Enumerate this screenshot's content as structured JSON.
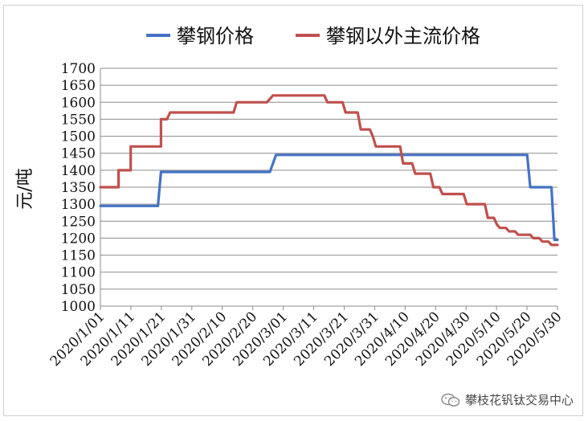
{
  "chart_data": {
    "type": "line",
    "xlabel": "",
    "ylabel": "元/吨",
    "ylim": [
      1000,
      1700
    ],
    "ytick_step": 50,
    "grid": true,
    "legend_position": "top",
    "x_ticks": [
      "2020/1/01",
      "2020/1/11",
      "2020/1/21",
      "2020/1/31",
      "2020/2/10",
      "2020/2/20",
      "2020/3/01",
      "2020/3/11",
      "2020/3/21",
      "2020/3/31",
      "2020/4/10",
      "2020/4/20",
      "2020/4/30",
      "2020/5/10",
      "2020/5/20",
      "2020/5/30"
    ],
    "x_range": [
      "2020-01-01",
      "2020-05-31"
    ],
    "series": [
      {
        "name": "攀钢价格",
        "color": "#4472c4",
        "points": [
          [
            "2020-01-01",
            1295
          ],
          [
            "2020-01-20",
            1295
          ],
          [
            "2020-01-21",
            1395
          ],
          [
            "2020-02-26",
            1395
          ],
          [
            "2020-02-28",
            1445
          ],
          [
            "2020-05-21",
            1445
          ],
          [
            "2020-05-22",
            1350
          ],
          [
            "2020-05-29",
            1350
          ],
          [
            "2020-05-30",
            1195
          ],
          [
            "2020-05-31",
            1195
          ]
        ]
      },
      {
        "name": "攀钢以外主流价格",
        "color": "#c0504d",
        "points": [
          [
            "2020-01-01",
            1350
          ],
          [
            "2020-01-07",
            1350
          ],
          [
            "2020-01-07",
            1400
          ],
          [
            "2020-01-11",
            1400
          ],
          [
            "2020-01-11",
            1470
          ],
          [
            "2020-01-21",
            1470
          ],
          [
            "2020-01-21",
            1550
          ],
          [
            "2020-01-23",
            1550
          ],
          [
            "2020-01-24",
            1570
          ],
          [
            "2020-02-14",
            1570
          ],
          [
            "2020-02-15",
            1600
          ],
          [
            "2020-02-25",
            1600
          ],
          [
            "2020-02-27",
            1620
          ],
          [
            "2020-03-15",
            1620
          ],
          [
            "2020-03-16",
            1600
          ],
          [
            "2020-03-21",
            1600
          ],
          [
            "2020-03-22",
            1570
          ],
          [
            "2020-03-26",
            1570
          ],
          [
            "2020-03-27",
            1520
          ],
          [
            "2020-03-30",
            1520
          ],
          [
            "2020-03-31",
            1500
          ],
          [
            "2020-04-01",
            1470
          ],
          [
            "2020-04-09",
            1470
          ],
          [
            "2020-04-10",
            1420
          ],
          [
            "2020-04-13",
            1420
          ],
          [
            "2020-04-14",
            1390
          ],
          [
            "2020-04-19",
            1390
          ],
          [
            "2020-04-20",
            1350
          ],
          [
            "2020-04-22",
            1350
          ],
          [
            "2020-04-23",
            1330
          ],
          [
            "2020-04-30",
            1330
          ],
          [
            "2020-05-01",
            1300
          ],
          [
            "2020-05-07",
            1300
          ],
          [
            "2020-05-08",
            1260
          ],
          [
            "2020-05-10",
            1260
          ],
          [
            "2020-05-11",
            1240
          ],
          [
            "2020-05-12",
            1230
          ],
          [
            "2020-05-14",
            1230
          ],
          [
            "2020-05-15",
            1220
          ],
          [
            "2020-05-17",
            1220
          ],
          [
            "2020-05-18",
            1210
          ],
          [
            "2020-05-22",
            1210
          ],
          [
            "2020-05-23",
            1200
          ],
          [
            "2020-05-25",
            1200
          ],
          [
            "2020-05-26",
            1190
          ],
          [
            "2020-05-28",
            1190
          ],
          [
            "2020-05-29",
            1180
          ],
          [
            "2020-05-31",
            1180
          ]
        ]
      }
    ]
  },
  "watermark": {
    "icon": "wechat-icon",
    "text": "攀枝花钒钛交易中心"
  }
}
